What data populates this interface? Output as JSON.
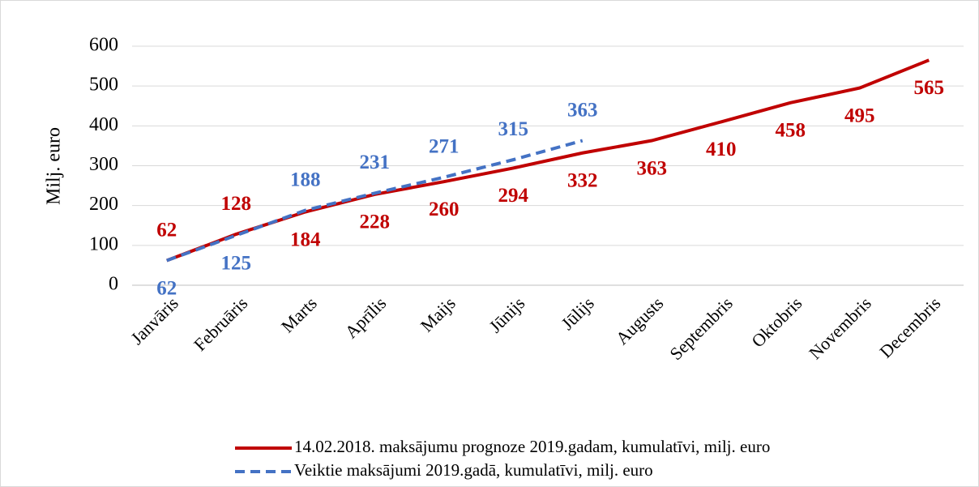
{
  "chart_data": {
    "type": "line",
    "y_label": "Milj. euro",
    "categories": [
      "Janvāris",
      "Februāris",
      "Marts",
      "Aprīlis",
      "Maijs",
      "Jūnijs",
      "Jūlijs",
      "Augusts",
      "Septembris",
      "Oktobris",
      "Novembris",
      "Decembris"
    ],
    "series": [
      {
        "name": "14.02.2018. maksājumu prognoze 2019.gadam, kumulatīvi, milj. euro",
        "color": "#c00000",
        "dash": false,
        "values": [
          62,
          128,
          184,
          228,
          260,
          294,
          332,
          363,
          410,
          458,
          495,
          565
        ]
      },
      {
        "name": "Veiktie maksājumi 2019.gadā, kumulatīvi, milj. euro",
        "color": "#4472c4",
        "dash": true,
        "values": [
          62,
          125,
          188,
          231,
          271,
          315,
          363,
          null,
          null,
          null,
          null,
          null
        ]
      }
    ],
    "ylim": [
      0,
      600
    ],
    "yticks": [
      0,
      100,
      200,
      300,
      400,
      500,
      600
    ],
    "grid": true,
    "legend": "bottom"
  }
}
